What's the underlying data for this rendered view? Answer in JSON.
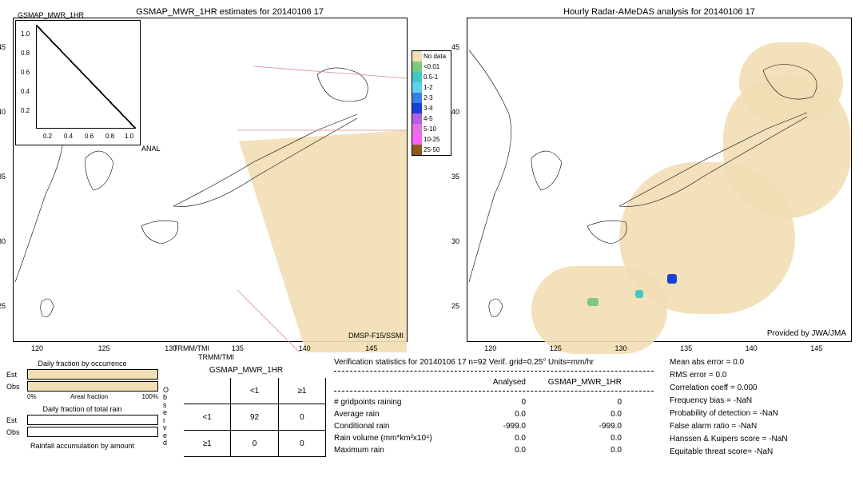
{
  "colors": {
    "no_data": "#f2deb4",
    "lt001": "#7ec97e",
    "05_1": "#40c8c4",
    "1_2": "#60d0f0",
    "2_3": "#3a80e6",
    "3_4": "#1740d8",
    "4_5": "#b060e0",
    "5_10": "#e470e4",
    "10_25": "#ff60ff",
    "25_50": "#8a5a20",
    "outline": "#000000",
    "bg": "#ffffff",
    "swath_border": "#d88"
  },
  "left_map": {
    "title": "GSMAP_MWR_1HR estimates for 20140106 17",
    "yticks": [
      45,
      40,
      35,
      30,
      25
    ],
    "xticks": [
      120,
      125,
      130,
      135,
      140,
      145
    ],
    "sat_labels": {
      "trmm": "TRMM/TMI",
      "dmsp": "DMSP-F15/SSMI",
      "anal": "ANAL"
    },
    "inset": {
      "title": "GSMAP_MWR_1HR",
      "yticks": [
        "0.2",
        "0.4",
        "0.6",
        "0.8",
        "1.0"
      ],
      "xticks": [
        "0.2",
        "0.4",
        "0.6",
        "0.8",
        "1.0"
      ]
    },
    "legend": [
      {
        "label": "No data",
        "key": "no_data"
      },
      {
        "label": "<0.01",
        "key": "lt001"
      },
      {
        "label": "0.5-1",
        "key": "05_1"
      },
      {
        "label": "1-2",
        "key": "1_2"
      },
      {
        "label": "2-3",
        "key": "2_3"
      },
      {
        "label": "3-4",
        "key": "3_4"
      },
      {
        "label": "4-5",
        "key": "4_5"
      },
      {
        "label": "5-10",
        "key": "5_10"
      },
      {
        "label": "10-25",
        "key": "10_25"
      },
      {
        "label": "25-50",
        "key": "25_50"
      }
    ]
  },
  "right_map": {
    "title": "Hourly Radar-AMeDAS analysis for 20140106 17",
    "credit": "Provided by JWA/JMA",
    "yticks": [
      45,
      40,
      35,
      30,
      25
    ],
    "xticks": [
      120,
      125,
      130,
      135,
      140,
      145
    ]
  },
  "fractions": {
    "occurrence_title": "Daily fraction by occurrence",
    "total_title": "Daily fraction of total rain",
    "accum_title": "Rainfall accumulation by amount",
    "rows": [
      "Est",
      "Obs"
    ],
    "axis": [
      "0%",
      "Areal fraction",
      "100%"
    ]
  },
  "contingency": {
    "title": "GSMAP_MWR_1HR",
    "subtitle": "TRMM/TMI",
    "obs_label": "Observed",
    "cols": [
      "<1",
      "≥1"
    ],
    "rows": [
      "<1",
      "≥1"
    ],
    "values": [
      [
        92,
        0
      ],
      [
        0,
        0
      ]
    ]
  },
  "stats": {
    "header": "Verification statistics for 20140106 17  n=92  Verif. grid=0.25°  Units=mm/hr",
    "col_headers": [
      "Analysed",
      "GSMAP_MWR_1HR"
    ],
    "rows": [
      {
        "label": "# gridpoints raining",
        "v1": "0",
        "v2": "0"
      },
      {
        "label": "Average rain",
        "v1": "0.0",
        "v2": "0.0"
      },
      {
        "label": "Conditional rain",
        "v1": "-999.0",
        "v2": "-999.0"
      },
      {
        "label": "Rain volume (mm*km²x10⁴)",
        "v1": "0.0",
        "v2": "0.0"
      },
      {
        "label": "Maximum rain",
        "v1": "0.0",
        "v2": "0.0"
      }
    ],
    "scores": [
      "Mean abs error = 0.0",
      "RMS error = 0.0",
      "Correlation coeff = 0.000",
      "Frequency bias = -NaN",
      "Probability of detection = -NaN",
      "False alarm ratio = -NaN",
      "Hanssen & Kuipers score = -NaN",
      "Equitable threat score= -NaN"
    ]
  }
}
